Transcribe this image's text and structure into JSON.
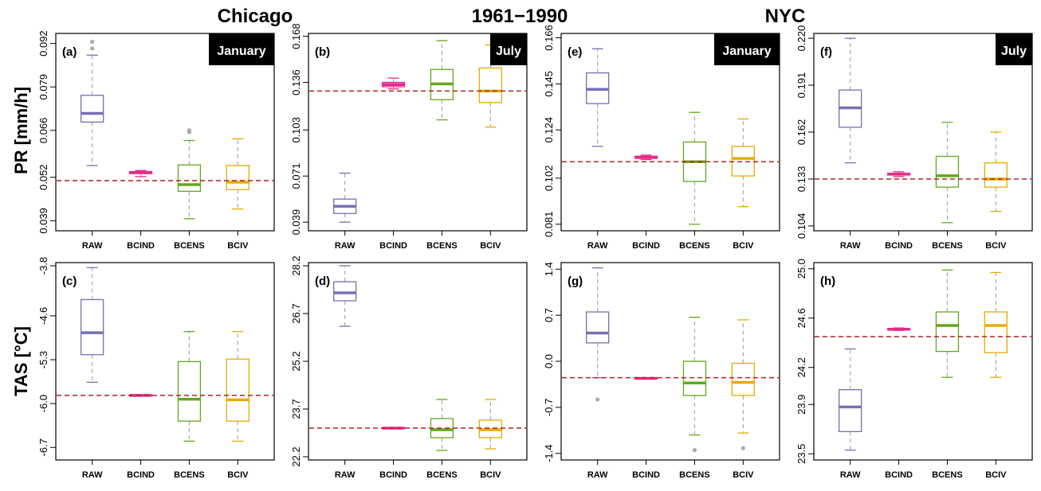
{
  "header": {
    "left": "Chicago",
    "center": "1961−1990",
    "right": "NYC"
  },
  "rows": {
    "top_ylabel": "PR [mm/h]",
    "bottom_ylabel": "TAS [°C]"
  },
  "colors": {
    "RAW": "#7570b3",
    "BCIND": "#e7298a",
    "BCENS": "#66a61e",
    "BCIV": "#e6ab02",
    "reference": "#b22222",
    "whisker": "#aaaaaa",
    "outlier": "#aaaaaa",
    "frame": "#000000"
  },
  "chart_data": [
    {
      "type": "box",
      "panel": "(a)",
      "month": "January",
      "categories": [
        "RAW",
        "BCIND",
        "BCENS",
        "BCIV"
      ],
      "yticks": [
        "0.039",
        "0.052",
        "0.066",
        "0.079",
        "0.092"
      ],
      "ylim": [
        0.036,
        0.095
      ],
      "reference": 0.051,
      "boxes": [
        {
          "min": 0.0555,
          "q1": 0.0685,
          "median": 0.0711,
          "q3": 0.0765,
          "max": 0.0885,
          "outliers": [
            0.0925,
            0.0905
          ]
        },
        {
          "min": 0.0522,
          "q1": 0.0531,
          "median": 0.0534,
          "q3": 0.0537,
          "max": 0.054,
          "outliers": []
        },
        {
          "min": 0.0396,
          "q1": 0.0478,
          "median": 0.0498,
          "q3": 0.0557,
          "max": 0.063,
          "outliers": [
            0.0655,
            0.066
          ]
        },
        {
          "min": 0.0425,
          "q1": 0.0483,
          "median": 0.0505,
          "q3": 0.0555,
          "max": 0.0635,
          "outliers": []
        }
      ]
    },
    {
      "type": "box",
      "panel": "(b)",
      "month": "July",
      "categories": [
        "RAW",
        "BCIND",
        "BCENS",
        "BCIV"
      ],
      "yticks": [
        "0.039",
        "0.071",
        "0.103",
        "0.136",
        "0.168"
      ],
      "ylim": [
        0.033,
        0.17
      ],
      "reference": 0.13,
      "boxes": [
        {
          "min": 0.039,
          "q1": 0.045,
          "median": 0.05,
          "q3": 0.055,
          "max": 0.073,
          "outliers": []
        },
        {
          "min": 0.1315,
          "q1": 0.133,
          "median": 0.1345,
          "q3": 0.136,
          "max": 0.139,
          "outliers": []
        },
        {
          "min": 0.11,
          "q1": 0.124,
          "median": 0.135,
          "q3": 0.145,
          "max": 0.165,
          "outliers": []
        },
        {
          "min": 0.105,
          "q1": 0.122,
          "median": 0.13,
          "q3": 0.146,
          "max": 0.162,
          "outliers": []
        }
      ]
    },
    {
      "type": "box",
      "panel": "(e)",
      "month": "January",
      "categories": [
        "RAW",
        "BCIND",
        "BCENS",
        "BCIV"
      ],
      "yticks": [
        "0.081",
        "0.102",
        "0.124",
        "0.145",
        "0.166"
      ],
      "ylim": [
        0.078,
        0.168
      ],
      "reference": 0.1095,
      "boxes": [
        {
          "min": 0.1165,
          "q1": 0.136,
          "median": 0.1425,
          "q3": 0.15,
          "max": 0.161,
          "outliers": []
        },
        {
          "min": 0.1105,
          "q1": 0.111,
          "median": 0.1115,
          "q3": 0.112,
          "max": 0.1125,
          "outliers": []
        },
        {
          "min": 0.081,
          "q1": 0.1005,
          "median": 0.1095,
          "q3": 0.1185,
          "max": 0.132,
          "outliers": []
        },
        {
          "min": 0.089,
          "q1": 0.103,
          "median": 0.111,
          "q3": 0.1165,
          "max": 0.129,
          "outliers": []
        }
      ]
    },
    {
      "type": "box",
      "panel": "(f)",
      "month": "July",
      "categories": [
        "RAW",
        "BCIND",
        "BCENS",
        "BCIV"
      ],
      "yticks": [
        "0.104",
        "0.133",
        "0.162",
        "0.191",
        "0.220"
      ],
      "ylim": [
        0.101,
        0.223
      ],
      "reference": 0.133,
      "boxes": [
        {
          "min": 0.143,
          "q1": 0.165,
          "median": 0.177,
          "q3": 0.188,
          "max": 0.22,
          "outliers": []
        },
        {
          "min": 0.1345,
          "q1": 0.1355,
          "median": 0.136,
          "q3": 0.1365,
          "max": 0.1375,
          "outliers": []
        },
        {
          "min": 0.106,
          "q1": 0.128,
          "median": 0.135,
          "q3": 0.147,
          "max": 0.168,
          "outliers": []
        },
        {
          "min": 0.113,
          "q1": 0.128,
          "median": 0.133,
          "q3": 0.143,
          "max": 0.162,
          "outliers": []
        }
      ]
    },
    {
      "type": "box",
      "panel": "(c)",
      "month": "",
      "categories": [
        "RAW",
        "BCIND",
        "BCENS",
        "BCIV"
      ],
      "yticks": [
        "-6.7",
        "-6.0",
        "-5.3",
        "-4.6",
        "-3.8"
      ],
      "ylim": [
        -6.9,
        -3.75
      ],
      "reference": -5.87,
      "boxes": [
        {
          "min": -5.66,
          "q1": -5.22,
          "median": -4.87,
          "q3": -4.34,
          "max": -3.83,
          "outliers": []
        },
        {
          "min": -5.88,
          "q1": -5.875,
          "median": -5.87,
          "q3": -5.865,
          "max": -5.86,
          "outliers": []
        },
        {
          "min": -6.6,
          "q1": -6.28,
          "median": -5.93,
          "q3": -5.33,
          "max": -4.85,
          "outliers": []
        },
        {
          "min": -6.6,
          "q1": -6.28,
          "median": -5.94,
          "q3": -5.29,
          "max": -4.85,
          "outliers": []
        }
      ]
    },
    {
      "type": "box",
      "panel": "(d)",
      "month": "",
      "categories": [
        "RAW",
        "BCIND",
        "BCENS",
        "BCIV"
      ],
      "yticks": [
        "22.2",
        "23.7",
        "25.2",
        "26.7",
        "28.2"
      ],
      "ylim": [
        22.1,
        28.3
      ],
      "reference": 23.1,
      "boxes": [
        {
          "min": 26.3,
          "q1": 27.1,
          "median": 27.35,
          "q3": 27.7,
          "max": 28.2,
          "outliers": []
        },
        {
          "min": 23.08,
          "q1": 23.09,
          "median": 23.1,
          "q3": 23.11,
          "max": 23.12,
          "outliers": []
        },
        {
          "min": 22.4,
          "q1": 22.8,
          "median": 23.05,
          "q3": 23.4,
          "max": 24.0,
          "outliers": []
        },
        {
          "min": 22.45,
          "q1": 22.8,
          "median": 23.05,
          "q3": 23.35,
          "max": 24.0,
          "outliers": []
        }
      ]
    },
    {
      "type": "box",
      "panel": "(g)",
      "month": "",
      "categories": [
        "RAW",
        "BCIND",
        "BCENS",
        "BCIV"
      ],
      "yticks": [
        "-1.4",
        "-0.7",
        "0.0",
        "0.7",
        "1.4"
      ],
      "ylim": [
        -1.5,
        1.5
      ],
      "reference": -0.25,
      "boxes": [
        {
          "min": -0.25,
          "q1": 0.28,
          "median": 0.43,
          "q3": 0.75,
          "max": 1.42,
          "outliers": [
            -0.58
          ]
        },
        {
          "min": -0.27,
          "q1": -0.265,
          "median": -0.26,
          "q3": -0.255,
          "max": -0.25,
          "outliers": []
        },
        {
          "min": -1.12,
          "q1": -0.52,
          "median": -0.33,
          "q3": 0.0,
          "max": 0.67,
          "outliers": [
            -1.35
          ]
        },
        {
          "min": -1.09,
          "q1": -0.52,
          "median": -0.32,
          "q3": -0.03,
          "max": 0.63,
          "outliers": [
            -1.32
          ]
        }
      ]
    },
    {
      "type": "box",
      "panel": "(h)",
      "month": "",
      "categories": [
        "RAW",
        "BCIND",
        "BCENS",
        "BCIV"
      ],
      "yticks": [
        "23.5",
        "23.9",
        "24.2",
        "24.6",
        "25.0"
      ],
      "ylim": [
        23.45,
        25.05
      ],
      "reference": 24.45,
      "boxes": [
        {
          "min": 23.53,
          "q1": 23.68,
          "median": 23.88,
          "q3": 24.02,
          "max": 24.35,
          "outliers": []
        },
        {
          "min": 24.5,
          "q1": 24.505,
          "median": 24.51,
          "q3": 24.515,
          "max": 24.52,
          "outliers": []
        },
        {
          "min": 24.12,
          "q1": 24.33,
          "median": 24.54,
          "q3": 24.65,
          "max": 24.99,
          "outliers": []
        },
        {
          "min": 24.12,
          "q1": 24.32,
          "median": 24.54,
          "q3": 24.65,
          "max": 24.97,
          "outliers": []
        }
      ]
    }
  ]
}
